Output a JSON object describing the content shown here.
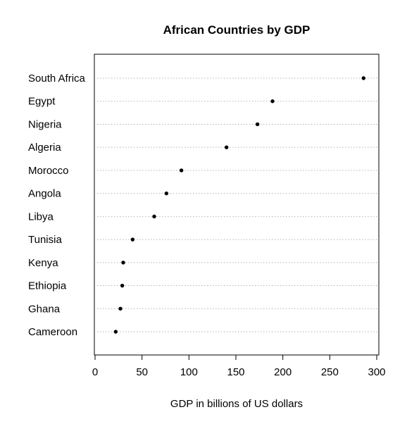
{
  "chart_data": {
    "type": "dot",
    "title": "African Countries by GDP",
    "xlabel": "GDP in billions of US dollars",
    "ylabel": "",
    "xlim": [
      0,
      300
    ],
    "xticks": [
      0,
      50,
      100,
      150,
      200,
      250,
      300
    ],
    "grid": "horizontal dotted",
    "categories": [
      "South Africa",
      "Egypt",
      "Nigeria",
      "Algeria",
      "Morocco",
      "Angola",
      "Libya",
      "Tunisia",
      "Kenya",
      "Ethiopia",
      "Ghana",
      "Cameroon"
    ],
    "values": [
      286,
      189,
      173,
      140,
      92,
      76,
      63,
      40,
      30,
      29,
      27,
      22
    ]
  }
}
